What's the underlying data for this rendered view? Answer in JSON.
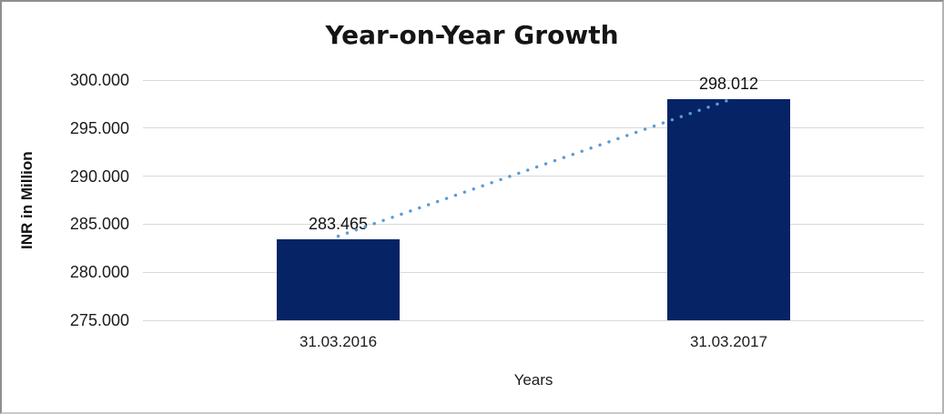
{
  "chart_data": {
    "type": "bar",
    "title": "Year-on-Year Growth",
    "xlabel": "Years",
    "ylabel": "INR in Million",
    "categories": [
      "31.03.2016",
      "31.03.2017"
    ],
    "values": [
      283.465,
      298.012
    ],
    "value_labels": [
      "283.465",
      "298.012"
    ],
    "ylim": [
      275,
      300
    ],
    "ytick_step": 5,
    "ytick_labels": [
      "275.000",
      "280.000",
      "285.000",
      "290.000",
      "295.000",
      "300.000"
    ],
    "grid": "horizontal-only",
    "legend_position": "none",
    "colors": {
      "bar": "#052365",
      "trendline": "#5B9BD5",
      "gridline": "#d9d9d9",
      "text": "#1c1c1c",
      "frame_border": "#a0a0a0"
    },
    "trendline": {
      "style": "dotted",
      "from_category": "31.03.2016",
      "to_category": "31.03.2017"
    }
  }
}
